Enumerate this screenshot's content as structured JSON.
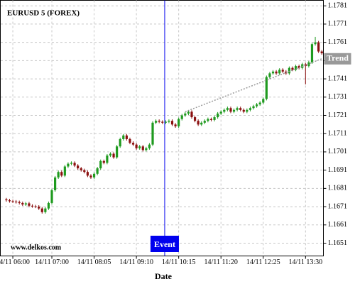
{
  "chart_data": {
    "type": "candlestick",
    "title": "EURUSD 5 (FOREX)",
    "watermark": "www.delkos.com",
    "x_label": "Date",
    "categories": [
      null,
      null,
      "14/11 06:00",
      null,
      null,
      null,
      null,
      null,
      null,
      null,
      null,
      null,
      null,
      null,
      "14/11 07:00",
      null,
      null,
      null,
      null,
      null,
      null,
      null,
      null,
      null,
      null,
      null,
      null,
      "14/11 08:05",
      null,
      null,
      null,
      null,
      null,
      null,
      null,
      null,
      null,
      null,
      null,
      null,
      "14/11 09:10",
      null,
      null,
      null,
      null,
      null,
      null,
      null,
      null,
      null,
      null,
      null,
      null,
      "14/11 10:15",
      null,
      null,
      null,
      null,
      null,
      null,
      null,
      null,
      null,
      null,
      null,
      null,
      "14/11 11:20",
      null,
      null,
      null,
      null,
      null,
      null,
      null,
      null,
      null,
      null,
      null,
      null,
      "14/11 12:25",
      null,
      null,
      null,
      null,
      null,
      null,
      null,
      null,
      null,
      null,
      null,
      null,
      "14/11 13:30",
      null,
      null,
      null,
      null,
      null
    ],
    "candles": [
      [
        1.1675,
        1.16758,
        1.16737,
        1.16745
      ],
      [
        1.16745,
        1.16753,
        1.16732,
        1.1674
      ],
      [
        1.1674,
        1.16748,
        1.1673,
        1.16738
      ],
      [
        1.16738,
        1.16746,
        1.16727,
        1.16735
      ],
      [
        1.16735,
        1.16743,
        1.16722,
        1.1673
      ],
      [
        1.1673,
        1.16738,
        1.16714,
        1.16722
      ],
      [
        1.16722,
        1.16736,
        1.16714,
        1.16728
      ],
      [
        1.16728,
        1.16736,
        1.16707,
        1.16715
      ],
      [
        1.16715,
        1.16723,
        1.16704,
        1.16712
      ],
      [
        1.16712,
        1.1672,
        1.16702,
        1.1671
      ],
      [
        1.1671,
        1.16718,
        1.16692,
        1.167
      ],
      [
        1.167,
        1.16708,
        1.16672,
        1.1668
      ],
      [
        1.1668,
        1.16708,
        1.16672,
        1.167
      ],
      [
        1.167,
        1.16738,
        1.16692,
        1.1673
      ],
      [
        1.1673,
        1.16808,
        1.16722,
        1.168
      ],
      [
        1.168,
        1.16878,
        1.16792,
        1.1687
      ],
      [
        1.1687,
        1.16908,
        1.16862,
        1.169
      ],
      [
        1.169,
        1.16908,
        1.16872,
        1.1688
      ],
      [
        1.1688,
        1.16938,
        1.16872,
        1.1693
      ],
      [
        1.1693,
        1.16953,
        1.16922,
        1.16945
      ],
      [
        1.16945,
        1.16958,
        1.16937,
        1.1695
      ],
      [
        1.1695,
        1.16958,
        1.16927,
        1.16935
      ],
      [
        1.16935,
        1.16943,
        1.16912,
        1.1692
      ],
      [
        1.1692,
        1.16928,
        1.16902,
        1.1691
      ],
      [
        1.1691,
        1.16918,
        1.16892,
        1.169
      ],
      [
        1.169,
        1.16908,
        1.16872,
        1.1688
      ],
      [
        1.1688,
        1.16888,
        1.16862,
        1.1687
      ],
      [
        1.1687,
        1.16898,
        1.16862,
        1.1689
      ],
      [
        1.1689,
        1.16928,
        1.16882,
        1.1692
      ],
      [
        1.1692,
        1.16968,
        1.16912,
        1.1696
      ],
      [
        1.1696,
        1.16968,
        1.16942,
        1.1695
      ],
      [
        1.1695,
        1.16998,
        1.16942,
        1.1699
      ],
      [
        1.1699,
        1.17008,
        1.16982,
        1.17
      ],
      [
        1.17,
        1.17008,
        1.16972,
        1.1698
      ],
      [
        1.1698,
        1.17048,
        1.16972,
        1.1704
      ],
      [
        1.1704,
        1.17088,
        1.17032,
        1.1708
      ],
      [
        1.1708,
        1.17108,
        1.17072,
        1.171
      ],
      [
        1.171,
        1.17108,
        1.17072,
        1.1708
      ],
      [
        1.1708,
        1.17088,
        1.17052,
        1.1706
      ],
      [
        1.1706,
        1.17068,
        1.17042,
        1.1705
      ],
      [
        1.1705,
        1.17058,
        1.17022,
        1.1703
      ],
      [
        1.1703,
        1.17048,
        1.17022,
        1.1704
      ],
      [
        1.1704,
        1.17048,
        1.17012,
        1.1702
      ],
      [
        1.1702,
        1.17038,
        1.17012,
        1.1703
      ],
      [
        1.1703,
        1.17058,
        1.17022,
        1.1705
      ],
      [
        1.1705,
        1.17178,
        1.17042,
        1.1717
      ],
      [
        1.1717,
        1.17188,
        1.17162,
        1.1718
      ],
      [
        1.1718,
        1.17188,
        1.17167,
        1.17175
      ],
      [
        1.17175,
        1.17183,
        1.17162,
        1.1717
      ],
      [
        1.1717,
        1.17183,
        1.17162,
        1.17175
      ],
      [
        1.17175,
        1.17188,
        1.17167,
        1.1718
      ],
      [
        1.1718,
        1.17188,
        1.17152,
        1.1716
      ],
      [
        1.1716,
        1.17168,
        1.17142,
        1.1715
      ],
      [
        1.1715,
        1.17198,
        1.17142,
        1.1719
      ],
      [
        1.1719,
        1.17218,
        1.17182,
        1.1721
      ],
      [
        1.1721,
        1.17228,
        1.17202,
        1.1722
      ],
      [
        1.1722,
        1.17238,
        1.17212,
        1.1723
      ],
      [
        1.1723,
        1.17238,
        1.17192,
        1.172
      ],
      [
        1.172,
        1.17208,
        1.17172,
        1.1718
      ],
      [
        1.1718,
        1.17188,
        1.17152,
        1.1716
      ],
      [
        1.1716,
        1.17178,
        1.17152,
        1.1717
      ],
      [
        1.1717,
        1.17188,
        1.17162,
        1.1718
      ],
      [
        1.1718,
        1.17198,
        1.17172,
        1.1719
      ],
      [
        1.1719,
        1.17198,
        1.17177,
        1.17185
      ],
      [
        1.17185,
        1.17208,
        1.17177,
        1.172
      ],
      [
        1.172,
        1.17228,
        1.17192,
        1.1722
      ],
      [
        1.1722,
        1.17238,
        1.17212,
        1.1723
      ],
      [
        1.1723,
        1.17248,
        1.17222,
        1.1724
      ],
      [
        1.1724,
        1.17258,
        1.17232,
        1.1725
      ],
      [
        1.1725,
        1.17258,
        1.17222,
        1.1723
      ],
      [
        1.1723,
        1.17248,
        1.17222,
        1.1724
      ],
      [
        1.1724,
        1.17258,
        1.17232,
        1.1725
      ],
      [
        1.1725,
        1.17258,
        1.17232,
        1.1724
      ],
      [
        1.1724,
        1.17248,
        1.17222,
        1.1723
      ],
      [
        1.1723,
        1.17248,
        1.17222,
        1.1724
      ],
      [
        1.1724,
        1.17258,
        1.17232,
        1.1725
      ],
      [
        1.1725,
        1.17268,
        1.17242,
        1.1726
      ],
      [
        1.1726,
        1.17278,
        1.17252,
        1.1727
      ],
      [
        1.1727,
        1.17288,
        1.17262,
        1.1728
      ],
      [
        1.1728,
        1.17308,
        1.17272,
        1.173
      ],
      [
        1.173,
        1.17428,
        1.17292,
        1.1742
      ],
      [
        1.1742,
        1.17448,
        1.17412,
        1.1744
      ],
      [
        1.1744,
        1.17458,
        1.17432,
        1.1745
      ],
      [
        1.1745,
        1.17458,
        1.17432,
        1.1744
      ],
      [
        1.1744,
        1.17468,
        1.17432,
        1.1746
      ],
      [
        1.1746,
        1.17468,
        1.17442,
        1.1745
      ],
      [
        1.1745,
        1.17458,
        1.17432,
        1.1744
      ],
      [
        1.1744,
        1.17478,
        1.17432,
        1.1747
      ],
      [
        1.1747,
        1.17478,
        1.17452,
        1.1746
      ],
      [
        1.1746,
        1.17488,
        1.17452,
        1.1748
      ],
      [
        1.1748,
        1.17488,
        1.17462,
        1.1747
      ],
      [
        1.1747,
        1.17498,
        1.17462,
        1.1749
      ],
      [
        1.1749,
        1.17498,
        1.1738,
        1.1748
      ],
      [
        1.1748,
        1.17508,
        1.17472,
        1.175
      ],
      [
        1.175,
        1.17608,
        1.17492,
        1.176
      ],
      [
        1.176,
        1.1764,
        1.17592,
        1.1761
      ],
      [
        1.1761,
        1.17618,
        1.17552,
        1.1756
      ],
      [
        1.1756,
        1.17568,
        1.17542,
        1.1755
      ]
    ],
    "up_color": "#1f9a1f",
    "down_color": "#8b1010",
    "ylim": [
      1.1644,
      1.1784
    ],
    "yticks": [
      1.1651,
      1.1661,
      1.1671,
      1.1681,
      1.1691,
      1.1701,
      1.1711,
      1.1721,
      1.1731,
      1.1741,
      1.1751,
      1.1761,
      1.1771,
      1.1781
    ],
    "grid": true,
    "event": {
      "label": "Event",
      "index": 48.7,
      "color": "#0000ee"
    },
    "trend": {
      "label": "Trend",
      "x": [
        55,
        97
      ],
      "y": [
        1.1723,
        1.1752
      ],
      "color": "#999999"
    }
  }
}
